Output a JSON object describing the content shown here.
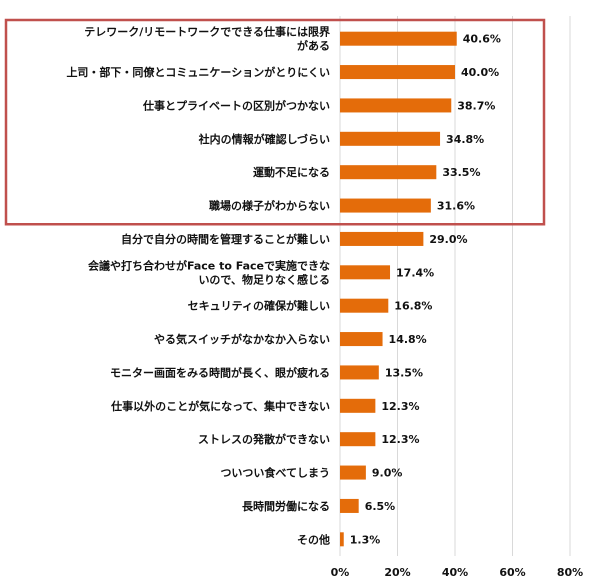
{
  "chart_data": {
    "type": "bar",
    "orientation": "horizontal",
    "categories": [
      [
        "テレワーク/リモートワークでできる仕事には限界",
        "がある"
      ],
      [
        "上司・部下・同僚とコミュニケーションがとりにくい"
      ],
      [
        "仕事とプライベートの区別がつかない"
      ],
      [
        "社内の情報が確認しづらい"
      ],
      [
        "運動不足になる"
      ],
      [
        "職場の様子がわからない"
      ],
      [
        "自分で自分の時間を管理することが難しい"
      ],
      [
        "会議や打ち合わせがFace to Faceで実施できな",
        "いので、物足りなく感じる"
      ],
      [
        "セキュリティの確保が難しい"
      ],
      [
        "やる気スイッチがなかなか入らない"
      ],
      [
        "モニター画面をみる時間が長く、眼が疲れる"
      ],
      [
        "仕事以外のことが気になって、集中できない"
      ],
      [
        "ストレスの発散ができない"
      ],
      [
        "ついつい食べてしまう"
      ],
      [
        "長時間労働になる"
      ],
      [
        "その他"
      ]
    ],
    "values": [
      40.6,
      40.0,
      38.7,
      34.8,
      33.5,
      31.6,
      29.0,
      17.4,
      16.8,
      14.8,
      13.5,
      12.3,
      12.3,
      9.0,
      6.5,
      1.3
    ],
    "value_labels": [
      "40.6%",
      "40.0%",
      "38.7%",
      "34.8%",
      "33.5%",
      "31.6%",
      "29.0%",
      "17.4%",
      "16.8%",
      "14.8%",
      "13.5%",
      "12.3%",
      "12.3%",
      "9.0%",
      "6.5%",
      "1.3%"
    ],
    "xlim": [
      0,
      80
    ],
    "xticks": [
      0,
      20,
      40,
      60,
      80
    ],
    "xtick_labels": [
      "0%",
      "20%",
      "40%",
      "60%",
      "80%"
    ],
    "grid": true,
    "highlight_box": {
      "from_index": 0,
      "to_index": 5,
      "color": "#c0504d"
    },
    "bar_color": "#e46c0a"
  }
}
